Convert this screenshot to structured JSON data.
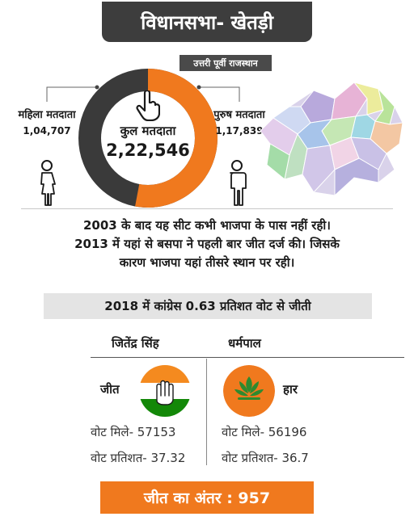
{
  "header": {
    "title": "विधानसभा- खेतड़ी",
    "region": "उत्तरी पूर्वी राजस्थान"
  },
  "voters": {
    "total_label": "कुल मतदाता",
    "total_value": "2,22,546",
    "female_label": "महिला मतदाता",
    "female_value": "1,04,707",
    "male_label": "पुरुष मतदाता",
    "male_value": "1,17,839",
    "female_share": 0.4705,
    "male_share": 0.5295,
    "female_color": "#3a3a3a",
    "male_color": "#f0791e"
  },
  "note": {
    "line1": "2003 के बाद यह सीट कभी भाजपा के पास नहीं रही।",
    "line2": "2013 में यहां से बसपा ने पहली बार जीत दर्ज की। जिसके",
    "line3": "कारण भाजपा यहां तीसरे स्थान पर रही।"
  },
  "result": {
    "headline": "2018 में कांग्रेस 0.63 प्रतिशत वोट से जीती"
  },
  "candidates": {
    "winner": {
      "name": "जितेंद्र सिंह",
      "outcome": "जीत",
      "party_icon": "congress-hand-icon",
      "votes": "वोट मिले- 57153",
      "percent": "वोट प्रतिशत- 37.32"
    },
    "runner_up": {
      "name": "धर्मपाल",
      "outcome": "हार",
      "party_icon": "bjp-lotus-icon",
      "votes": "वोट मिले- 56196",
      "percent": "वोट प्रतिशत- 36.7"
    }
  },
  "margin": {
    "text": "जीत का अंतर : 957"
  },
  "colors": {
    "accent": "#f0791e",
    "dark": "#3d3d3d",
    "congress_green": "#138808"
  }
}
